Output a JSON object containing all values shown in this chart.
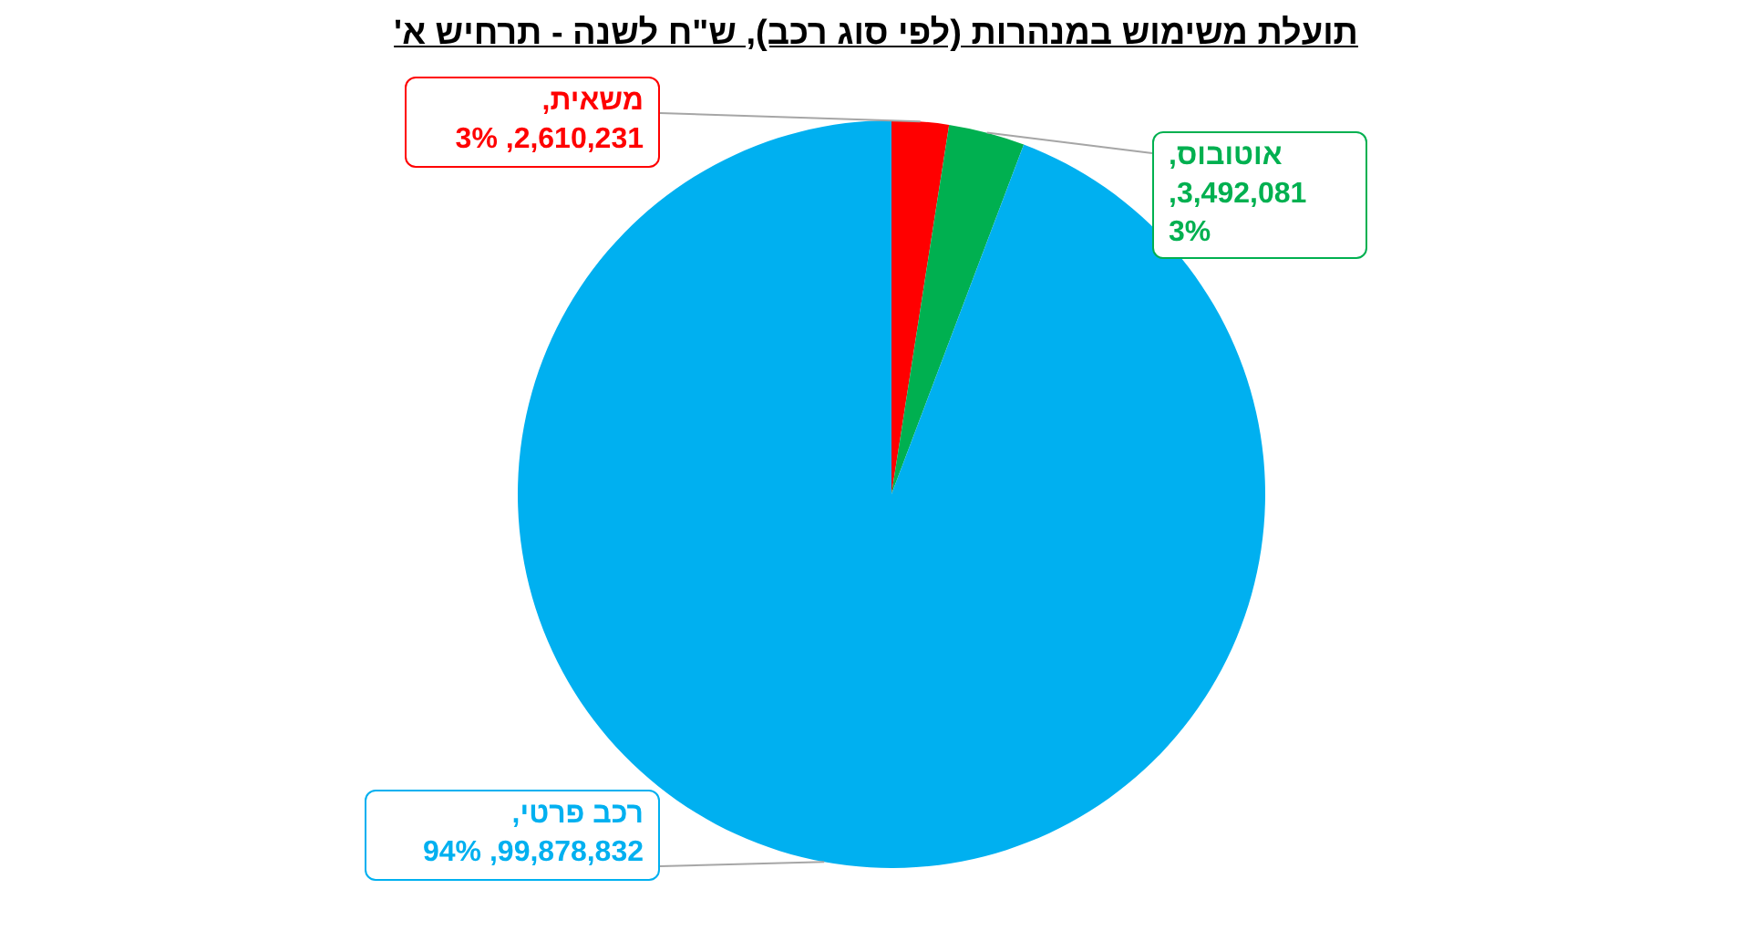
{
  "chart_data": {
    "type": "pie",
    "title": "תועלת משימוש במנהרות (לפי סוג רכב), ש\"ח לשנה - תרחיש א'",
    "categories": [
      "משאית",
      "אוטובוס",
      "רכב פרטי"
    ],
    "values": [
      2610231,
      3492081,
      99878832
    ],
    "colors": [
      "#ff0000",
      "#00b050",
      "#00b0f0"
    ],
    "value_labels": [
      ", 2,610,231, 3%",
      ", 3,492,081, 3%",
      ", 99,878,832, 94%"
    ],
    "legend": false
  }
}
